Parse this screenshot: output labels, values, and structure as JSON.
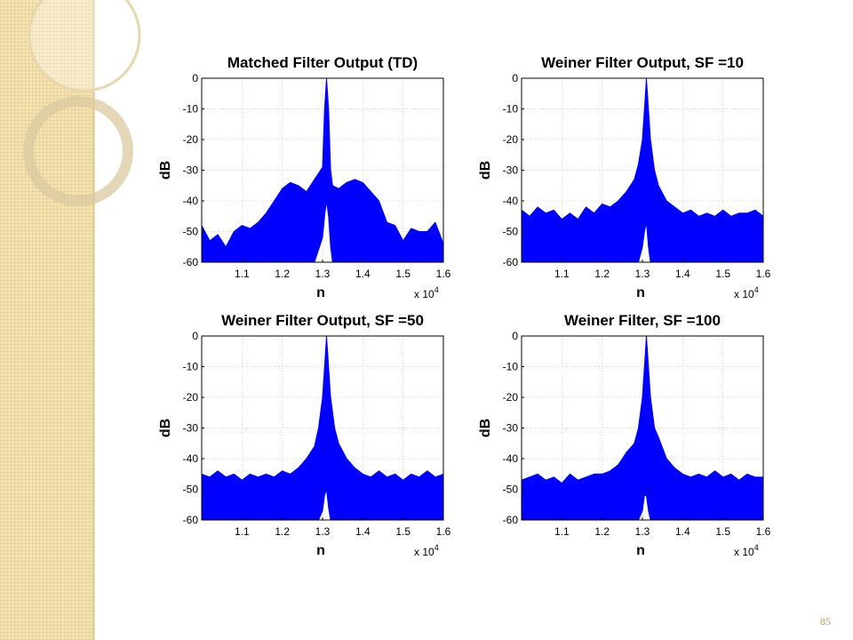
{
  "slide": {
    "page_number": "85"
  },
  "colors": {
    "trace": "#0000ff",
    "side_band": "#f5e3b3",
    "page_number": "#b59a58"
  },
  "chart_data": [
    {
      "type": "area",
      "title": "Matched Filter Output (TD)",
      "xlabel": "n",
      "ylabel": "dB",
      "x_multiplier_label": "x 10",
      "x_multiplier_exponent": "4",
      "xlim": [
        1.0,
        1.6
      ],
      "ylim": [
        -60,
        0
      ],
      "xticks": [
        "1.1",
        "1.2",
        "1.3",
        "1.4",
        "1.5",
        "1.6"
      ],
      "yticks": [
        "0",
        "-10",
        "-20",
        "-30",
        "-40",
        "-50",
        "-60"
      ],
      "grid": true,
      "series": [
        {
          "color": "#0000ff",
          "x": [
            1.0,
            1.02,
            1.04,
            1.06,
            1.08,
            1.1,
            1.12,
            1.14,
            1.16,
            1.18,
            1.2,
            1.22,
            1.24,
            1.26,
            1.28,
            1.3,
            1.305,
            1.31,
            1.315,
            1.32,
            1.325,
            1.34,
            1.36,
            1.38,
            1.4,
            1.42,
            1.44,
            1.46,
            1.48,
            1.5,
            1.52,
            1.54,
            1.56,
            1.58,
            1.6
          ],
          "upper": [
            -48,
            -53,
            -51,
            -55,
            -50,
            -48,
            -49,
            -47,
            -44,
            -40,
            -36,
            -34,
            -35,
            -37,
            -33,
            -29,
            -10,
            0,
            -10,
            -30,
            -35,
            -36,
            -34,
            -33,
            -34,
            -37,
            -40,
            -47,
            -48,
            -53,
            -49,
            -50,
            -50,
            -47,
            -54
          ],
          "lower": [
            -60,
            -60,
            -60,
            -60,
            -60,
            -60,
            -60,
            -60,
            -60,
            -60,
            -60,
            -60,
            -60,
            -60,
            -60,
            -52,
            -45,
            -40,
            -45,
            -55,
            -60,
            -60,
            -60,
            -60,
            -60,
            -60,
            -60,
            -60,
            -60,
            -60,
            -60,
            -60,
            -60,
            -60,
            -60
          ]
        }
      ]
    },
    {
      "type": "area",
      "title": "Weiner Filter Output, SF =10",
      "xlabel": "n",
      "ylabel": "dB",
      "x_multiplier_label": "x 10",
      "x_multiplier_exponent": "4",
      "xlim": [
        1.0,
        1.6
      ],
      "ylim": [
        -60,
        0
      ],
      "xticks": [
        "1.1",
        "1.2",
        "1.3",
        "1.4",
        "1.5",
        "1.6"
      ],
      "yticks": [
        "0",
        "-10",
        "-20",
        "-30",
        "-40",
        "-50",
        "-60"
      ],
      "grid": true,
      "series": [
        {
          "color": "#0000ff",
          "x": [
            1.0,
            1.02,
            1.04,
            1.06,
            1.08,
            1.1,
            1.12,
            1.14,
            1.16,
            1.18,
            1.2,
            1.22,
            1.24,
            1.26,
            1.28,
            1.29,
            1.3,
            1.305,
            1.31,
            1.315,
            1.32,
            1.33,
            1.34,
            1.36,
            1.38,
            1.4,
            1.42,
            1.44,
            1.46,
            1.48,
            1.5,
            1.52,
            1.54,
            1.56,
            1.58,
            1.6
          ],
          "upper": [
            -43,
            -45,
            -42,
            -44,
            -43,
            -46,
            -44,
            -46,
            -42,
            -44,
            -41,
            -42,
            -40,
            -37,
            -33,
            -28,
            -20,
            -10,
            0,
            -10,
            -20,
            -30,
            -35,
            -40,
            -42,
            -44,
            -43,
            -45,
            -44,
            -45,
            -43,
            -45,
            -44,
            -44,
            -43,
            -45
          ],
          "lower": [
            -60,
            -60,
            -60,
            -60,
            -60,
            -60,
            -60,
            -60,
            -60,
            -60,
            -60,
            -60,
            -60,
            -60,
            -60,
            -60,
            -55,
            -50,
            -47,
            -55,
            -60,
            -60,
            -60,
            -60,
            -60,
            -60,
            -60,
            -60,
            -60,
            -60,
            -60,
            -60,
            -60,
            -60,
            -60,
            -60
          ]
        }
      ]
    },
    {
      "type": "area",
      "title": "Weiner Filter Output, SF =50",
      "xlabel": "n",
      "ylabel": "dB",
      "x_multiplier_label": "x 10",
      "x_multiplier_exponent": "4",
      "xlim": [
        1.0,
        1.6
      ],
      "ylim": [
        -60,
        0
      ],
      "xticks": [
        "1.1",
        "1.2",
        "1.3",
        "1.4",
        "1.5",
        "1.6"
      ],
      "yticks": [
        "0",
        "-10",
        "-20",
        "-30",
        "-40",
        "-50",
        "-60"
      ],
      "grid": true,
      "series": [
        {
          "color": "#0000ff",
          "x": [
            1.0,
            1.02,
            1.04,
            1.06,
            1.08,
            1.1,
            1.12,
            1.14,
            1.16,
            1.18,
            1.2,
            1.22,
            1.24,
            1.26,
            1.28,
            1.29,
            1.3,
            1.305,
            1.31,
            1.315,
            1.32,
            1.33,
            1.34,
            1.36,
            1.38,
            1.4,
            1.42,
            1.44,
            1.46,
            1.48,
            1.5,
            1.52,
            1.54,
            1.56,
            1.58,
            1.6
          ],
          "upper": [
            -45,
            -46,
            -44,
            -46,
            -45,
            -47,
            -45,
            -46,
            -45,
            -46,
            -44,
            -45,
            -43,
            -40,
            -36,
            -30,
            -20,
            -10,
            0,
            -10,
            -20,
            -30,
            -35,
            -40,
            -43,
            -45,
            -46,
            -44,
            -46,
            -45,
            -47,
            -45,
            -46,
            -44,
            -46,
            -45
          ],
          "lower": [
            -60,
            -60,
            -60,
            -60,
            -60,
            -60,
            -60,
            -60,
            -60,
            -60,
            -60,
            -60,
            -60,
            -60,
            -60,
            -60,
            -57,
            -52,
            -50,
            -56,
            -60,
            -60,
            -60,
            -60,
            -60,
            -60,
            -60,
            -60,
            -60,
            -60,
            -60,
            -60,
            -60,
            -60,
            -60,
            -60
          ]
        }
      ]
    },
    {
      "type": "area",
      "title": "Weiner Filter, SF =100",
      "xlabel": "n",
      "ylabel": "dB",
      "x_multiplier_label": "x 10",
      "x_multiplier_exponent": "4",
      "xlim": [
        1.0,
        1.6
      ],
      "ylim": [
        -60,
        0
      ],
      "xticks": [
        "1.1",
        "1.2",
        "1.3",
        "1.4",
        "1.5",
        "1.6"
      ],
      "yticks": [
        "0",
        "-10",
        "-20",
        "-30",
        "-40",
        "-50",
        "-60"
      ],
      "grid": true,
      "series": [
        {
          "color": "#0000ff",
          "x": [
            1.0,
            1.02,
            1.04,
            1.06,
            1.08,
            1.1,
            1.12,
            1.14,
            1.16,
            1.18,
            1.2,
            1.22,
            1.24,
            1.26,
            1.28,
            1.29,
            1.3,
            1.305,
            1.31,
            1.315,
            1.32,
            1.33,
            1.34,
            1.36,
            1.38,
            1.4,
            1.42,
            1.44,
            1.46,
            1.48,
            1.5,
            1.52,
            1.54,
            1.56,
            1.58,
            1.6
          ],
          "upper": [
            -47,
            -46,
            -45,
            -47,
            -46,
            -48,
            -45,
            -47,
            -46,
            -45,
            -45,
            -44,
            -42,
            -38,
            -35,
            -30,
            -20,
            -10,
            0,
            -10,
            -20,
            -30,
            -33,
            -40,
            -43,
            -45,
            -46,
            -45,
            -46,
            -44,
            -46,
            -45,
            -47,
            -45,
            -46,
            -46
          ],
          "lower": [
            -60,
            -60,
            -60,
            -60,
            -60,
            -60,
            -60,
            -60,
            -60,
            -60,
            -60,
            -60,
            -60,
            -60,
            -60,
            -60,
            -57,
            -52,
            -52,
            -57,
            -60,
            -60,
            -60,
            -60,
            -60,
            -60,
            -60,
            -60,
            -60,
            -60,
            -60,
            -60,
            -60,
            -60,
            -60,
            -60
          ]
        }
      ]
    }
  ]
}
